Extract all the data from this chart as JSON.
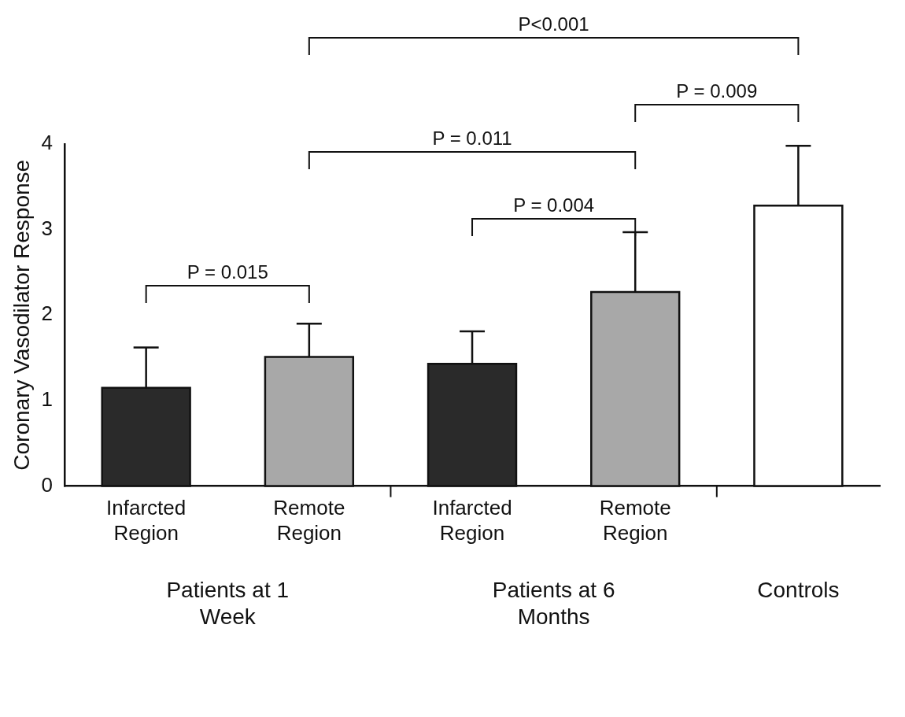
{
  "chart_data": {
    "type": "bar",
    "ylabel": "Coronary Vasodilator Response",
    "categories": [
      "Infarcted Region",
      "Remote Region",
      "Infarcted Region",
      "Remote Region",
      null
    ],
    "values": [
      1.15,
      1.51,
      1.43,
      2.27,
      3.28
    ],
    "errors": [
      [
        1.15,
        1.62
      ],
      [
        1.51,
        1.9
      ],
      [
        1.43,
        1.81
      ],
      [
        2.27,
        2.97
      ],
      [
        3.28,
        3.98
      ]
    ],
    "colors": [
      "#2a2a2a",
      "#a8a8a8",
      "#2a2a2a",
      "#a8a8a8",
      "#ffffff"
    ],
    "ylim": [
      0,
      4
    ],
    "yticks": [
      0,
      1,
      2,
      3,
      4
    ],
    "grid": false,
    "legend": false,
    "annotations": [
      "P<0.001",
      "P = 0.009",
      "P = 0.011",
      "P = 0.004",
      "P = 0.015",
      "Patients at 1 Week",
      "Patients at 6 Months",
      "Controls"
    ]
  }
}
